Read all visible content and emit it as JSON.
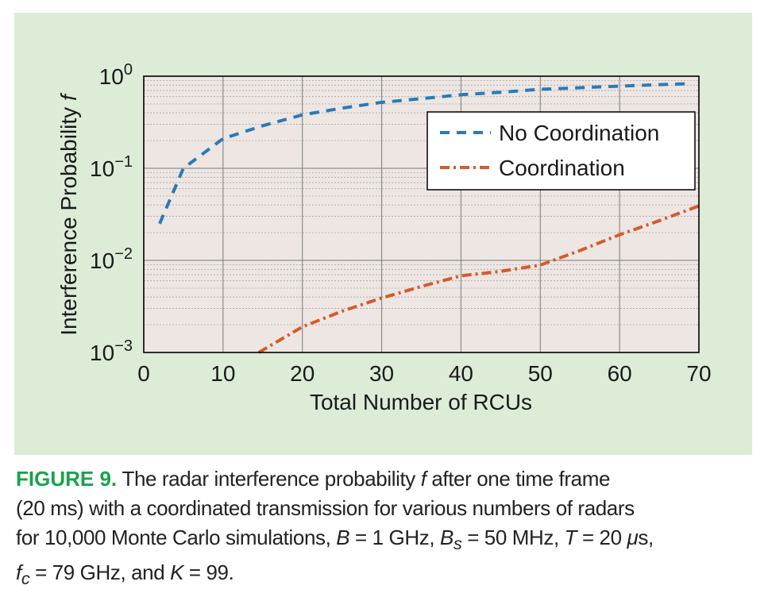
{
  "chart_data": {
    "type": "line",
    "xlabel": "Total Number of RCUs",
    "ylabel": "Interference Probability f",
    "ylabel_main": "Interference Probability ",
    "ylabel_var": "f",
    "xlim": [
      0,
      70
    ],
    "ylim": [
      0.001,
      1
    ],
    "yscale": "log",
    "x_ticks": [
      0,
      10,
      20,
      30,
      40,
      50,
      60,
      70
    ],
    "y_ticks": [
      {
        "value": 0.001,
        "base": "10",
        "exp": "−3"
      },
      {
        "value": 0.01,
        "base": "10",
        "exp": "−2"
      },
      {
        "value": 0.1,
        "base": "10",
        "exp": "−1"
      },
      {
        "value": 1,
        "base": "10",
        "exp": "0"
      }
    ],
    "grid": true,
    "legend_position": "top-right",
    "series": [
      {
        "name": "No Coordination",
        "color": "#2a7ab8",
        "style": "dashed",
        "points": [
          [
            2,
            0.025
          ],
          [
            5,
            0.1
          ],
          [
            10,
            0.21
          ],
          [
            15,
            0.29
          ],
          [
            20,
            0.38
          ],
          [
            25,
            0.45
          ],
          [
            30,
            0.52
          ],
          [
            35,
            0.57
          ],
          [
            40,
            0.63
          ],
          [
            45,
            0.67
          ],
          [
            50,
            0.72
          ],
          [
            55,
            0.75
          ],
          [
            60,
            0.78
          ],
          [
            65,
            0.81
          ],
          [
            69,
            0.83
          ]
        ]
      },
      {
        "name": "Coordination",
        "color": "#d45b2c",
        "style": "dashdot",
        "points": [
          [
            14.5,
            0.001
          ],
          [
            20,
            0.0019
          ],
          [
            25,
            0.0028
          ],
          [
            30,
            0.0039
          ],
          [
            35,
            0.0052
          ],
          [
            40,
            0.0068
          ],
          [
            45,
            0.0076
          ],
          [
            50,
            0.0089
          ],
          [
            55,
            0.0128
          ],
          [
            60,
            0.019
          ],
          [
            65,
            0.027
          ],
          [
            70,
            0.039
          ]
        ]
      }
    ]
  },
  "caption": {
    "label": "FIGURE 9.",
    "line1_a": " The radar interference probability ",
    "line1_var": "f",
    "line1_b": " after one time frame",
    "line2": "(20 ms) with a coordinated transmission for various numbers of radars",
    "line3_a": "for 10,000 Monte Carlo simulations, ",
    "B_var": "B",
    "B_val": " = 1 GHz, ",
    "Bs_var": "B",
    "Bs_sub": "s",
    "Bs_val": " = 50 MHz, ",
    "T_var": "T",
    "T_val": " = 20 ",
    "mu": "μ",
    "T_unit": "s,",
    "fc_var": "f",
    "fc_sub": "c",
    "fc_val": " = 79 GHz, and ",
    "K_var": "K",
    "K_val": " = 99."
  }
}
